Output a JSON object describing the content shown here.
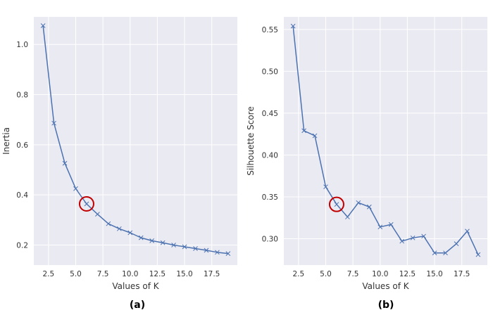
{
  "figure": {
    "panel_a_caption": "(a)",
    "panel_b_caption": "(b)"
  },
  "chart_data": [
    {
      "type": "line",
      "title": "",
      "xlabel": "Values of K",
      "ylabel": "Inertia",
      "x": [
        2,
        3,
        4,
        5,
        6,
        7,
        8,
        9,
        10,
        11,
        12,
        13,
        14,
        15,
        16,
        17,
        18,
        19
      ],
      "series": [
        {
          "values": [
            1.075,
            0.686,
            0.526,
            0.425,
            0.364,
            0.323,
            0.285,
            0.265,
            0.249,
            0.229,
            0.217,
            0.209,
            0.2,
            0.193,
            0.186,
            0.179,
            0.171,
            0.166
          ]
        }
      ],
      "xlim": [
        1.15,
        19.85
      ],
      "ylim": [
        0.12,
        1.11
      ],
      "xticks": [
        2.5,
        5.0,
        7.5,
        10.0,
        12.5,
        15.0,
        17.5
      ],
      "xtick_labels": [
        "2.5",
        "5.0",
        "7.5",
        "10.0",
        "12.5",
        "15.0",
        "17.5"
      ],
      "yticks": [
        0.2,
        0.4,
        0.6,
        0.8,
        1.0
      ],
      "ytick_labels": [
        "0.2",
        "0.4",
        "0.6",
        "0.8",
        "1.0"
      ],
      "highlight": {
        "x": 6,
        "y": 0.364,
        "marker": "circle",
        "color": "#c00000"
      },
      "line_color": "#4c72b0",
      "background": "#eaeaf2",
      "grid": true
    },
    {
      "type": "line",
      "title": "",
      "xlabel": "Values of K",
      "ylabel": "Silhouette Score",
      "x": [
        2,
        3,
        4,
        5,
        6,
        7,
        8,
        9,
        10,
        11,
        12,
        13,
        14,
        15,
        16,
        17,
        18,
        19
      ],
      "series": [
        {
          "values": [
            0.554,
            0.429,
            0.423,
            0.362,
            0.341,
            0.326,
            0.343,
            0.338,
            0.314,
            0.317,
            0.297,
            0.301,
            0.303,
            0.283,
            0.283,
            0.294,
            0.309,
            0.281
          ]
        }
      ],
      "xlim": [
        1.15,
        19.85
      ],
      "ylim": [
        0.2685,
        0.565
      ],
      "xticks": [
        2.5,
        5.0,
        7.5,
        10.0,
        12.5,
        15.0,
        17.5
      ],
      "xtick_labels": [
        "2.5",
        "5.0",
        "7.5",
        "10.0",
        "12.5",
        "15.0",
        "17.5"
      ],
      "yticks": [
        0.3,
        0.35,
        0.4,
        0.45,
        0.5,
        0.55
      ],
      "ytick_labels": [
        "0.30",
        "0.35",
        "0.40",
        "0.45",
        "0.50",
        "0.55"
      ],
      "highlight": {
        "x": 6,
        "y": 0.341,
        "marker": "circle",
        "color": "#c00000"
      },
      "line_color": "#4c72b0",
      "background": "#eaeaf2",
      "grid": true
    }
  ]
}
